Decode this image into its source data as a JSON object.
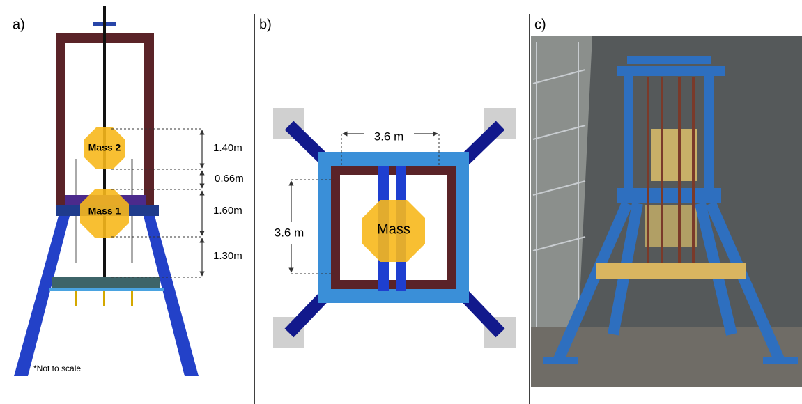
{
  "panels": [
    {
      "label": "a)",
      "masses": [
        "Mass 2",
        "Mass 1"
      ],
      "dimensions": [
        "1.40m",
        "0.66m",
        "1.60m",
        "1.30m"
      ],
      "note": "*Not to scale"
    },
    {
      "label": "b)",
      "dimensions": [
        "3.6 m",
        "3.6 m"
      ],
      "mass": "Mass"
    },
    {
      "label": "c)"
    }
  ]
}
